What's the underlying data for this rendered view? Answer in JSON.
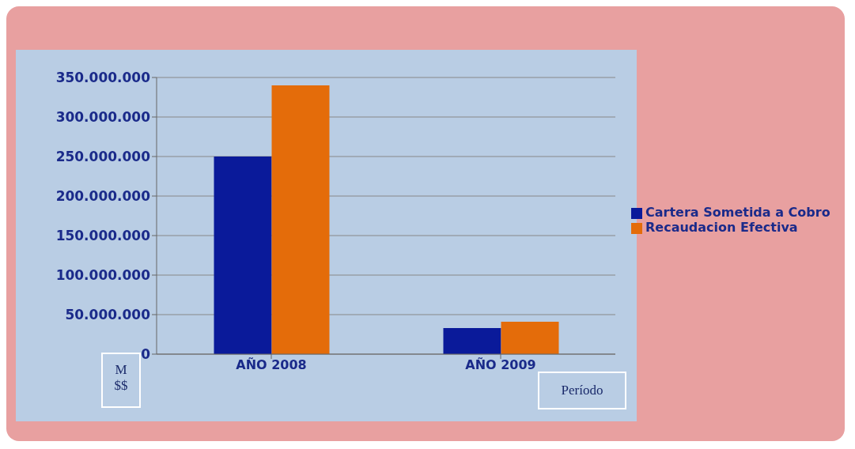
{
  "chart_data": {
    "type": "bar",
    "categories": [
      "AÑO 2008",
      "AÑO 2009"
    ],
    "series": [
      {
        "name": "Cartera Sometida a Cobro",
        "color": "#0a1a9a",
        "values": [
          250000000,
          33000000
        ]
      },
      {
        "name": "Recaudacion Efectiva",
        "color": "#e46c0a",
        "values": [
          340000000,
          41000000
        ]
      }
    ],
    "ylabel": "M $$",
    "xlabel": "Período",
    "ylim": [
      0,
      350000000
    ],
    "yticks": [
      0,
      {
        "value": 50000000,
        "label": "50.000.000"
      },
      {
        "value": 100000000,
        "label": "100.000.000"
      },
      {
        "value": 150000000,
        "label": "150.000.000"
      },
      {
        "value": 200000000,
        "label": "200.000.000"
      },
      {
        "value": 250000000,
        "label": "250.000.000"
      },
      {
        "value": 300000000,
        "label": "300.000.000"
      },
      {
        "value": 350000000,
        "label": "350.000.000"
      }
    ],
    "grid": "y",
    "legend": "right"
  }
}
